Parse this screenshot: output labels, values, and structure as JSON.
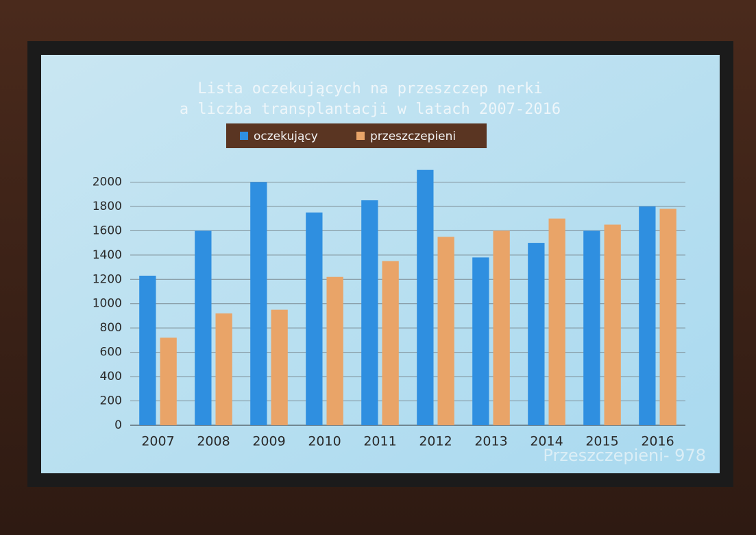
{
  "chart_data": {
    "type": "bar",
    "title": [
      "Lista oczekujących na przeszczep nerki",
      "a liczba transplantacji w latach 2007-2016"
    ],
    "categories": [
      "2007",
      "2008",
      "2009",
      "2010",
      "2011",
      "2012",
      "2013",
      "2014",
      "2015",
      "2016"
    ],
    "series": [
      {
        "name": "oczekujący",
        "color": "#2f8fe0",
        "values": [
          1230,
          1600,
          2000,
          1750,
          1850,
          2100,
          1380,
          1500,
          1600,
          1800
        ]
      },
      {
        "name": "przeszczepieni",
        "color": "#e9a468",
        "values": [
          720,
          920,
          950,
          1220,
          1350,
          1550,
          1600,
          1700,
          1650,
          1780
        ]
      }
    ],
    "ylim": [
      0,
      2200
    ],
    "yticks": [
      0,
      200,
      400,
      600,
      800,
      1000,
      1200,
      1400,
      1600,
      1800,
      2000
    ],
    "grid": true,
    "legend": "top",
    "annotation": "Przeszczepieni- 978"
  }
}
